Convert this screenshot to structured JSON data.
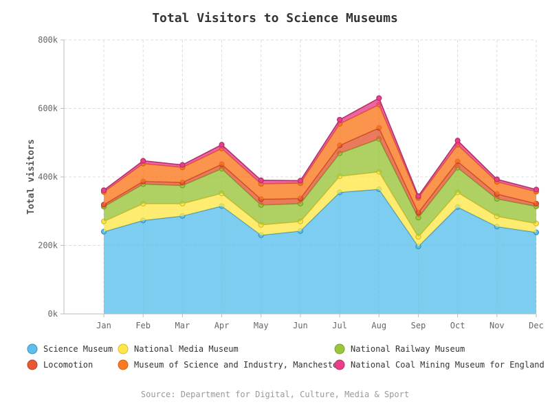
{
  "chart_data": {
    "type": "area",
    "stacked": true,
    "title": "Total Visitors to Science Museums",
    "ylabel": "Total visitors",
    "xlabel": "",
    "categories": [
      "Jan",
      "Feb",
      "Mar",
      "Apr",
      "May",
      "Jun",
      "Jul",
      "Aug",
      "Sep",
      "Oct",
      "Nov",
      "Dec"
    ],
    "ylim": [
      0,
      800000
    ],
    "yticks": [
      {
        "value": 0,
        "label": "0k"
      },
      {
        "value": 200000,
        "label": "200k"
      },
      {
        "value": 400000,
        "label": "400k"
      },
      {
        "value": 600000,
        "label": "600k"
      },
      {
        "value": 800000,
        "label": "800k"
      }
    ],
    "grid": true,
    "legend_placement": "bottom",
    "series": [
      {
        "name": "Science Museum",
        "color": "#5bc0eb",
        "line_color": "#3d8fb8",
        "values": [
          240000,
          273000,
          286000,
          315000,
          230000,
          242000,
          355000,
          364000,
          197000,
          312000,
          255000,
          238000
        ]
      },
      {
        "name": "National Media Museum",
        "color": "#fde74c",
        "line_color": "#d9b92a",
        "values": [
          30000,
          49000,
          36000,
          37000,
          30000,
          28000,
          47000,
          51000,
          28000,
          43000,
          30000,
          26000
        ]
      },
      {
        "name": "National Railway Museum",
        "color": "#9bc53d",
        "line_color": "#7a9e2c",
        "values": [
          43000,
          57000,
          53000,
          72000,
          58000,
          52000,
          67000,
          96000,
          56000,
          72000,
          51000,
          50000
        ]
      },
      {
        "name": "Locomotion",
        "color": "#e55934",
        "line_color": "#b8412a",
        "values": [
          6000,
          8000,
          9000,
          13000,
          17000,
          15000,
          23000,
          32000,
          15000,
          18000,
          14000,
          8000
        ]
      },
      {
        "name": "Museum of Science and Industry, Manchester",
        "color": "#fa7921",
        "line_color": "#d45e14",
        "values": [
          37000,
          52000,
          44000,
          46000,
          45000,
          45000,
          63000,
          68000,
          43000,
          49000,
          36000,
          35000
        ]
      },
      {
        "name": "National Coal Mining Museum for England",
        "color": "#e83f88",
        "line_color": "#b3306a",
        "values": [
          5000,
          8000,
          7000,
          11000,
          10000,
          7000,
          12000,
          19000,
          5000,
          12000,
          7000,
          6000
        ]
      }
    ],
    "source": "Source: Department for Digital, Culture, Media & Sport"
  }
}
